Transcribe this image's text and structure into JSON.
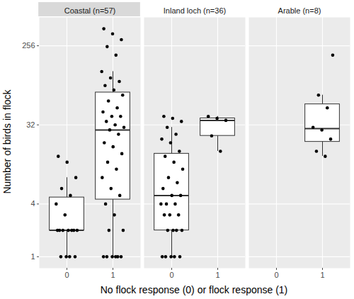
{
  "chart_data": {
    "type": "box",
    "x_label": "No flock response (0) or flock response (1)",
    "y_label": "Number of birds in flock",
    "categories": [
      "0",
      "1"
    ],
    "log": "y",
    "grid": true,
    "ylim": [
      0.74,
      540
    ],
    "yticks": [
      1,
      4,
      32,
      256
    ],
    "marker": "circle",
    "color": "#000000",
    "facets": [
      {
        "name": "Coastal (n=57)",
        "values": [
          [
            1,
            1,
            1,
            1,
            2,
            2,
            2,
            2,
            2,
            2,
            2,
            3,
            4,
            5,
            6,
            8,
            12,
            14
          ],
          [
            1,
            1,
            1,
            1,
            1,
            1,
            2,
            2,
            3,
            4,
            5,
            6,
            8,
            10,
            12,
            15,
            18,
            20,
            25,
            28,
            30,
            32,
            35,
            40,
            40,
            45,
            50,
            60,
            70,
            80,
            90,
            100,
            110,
            130,
            200,
            250,
            300,
            350,
            400
          ]
        ]
      },
      {
        "name": "Inland loch (n=36)",
        "values": [
          [
            1,
            1,
            1,
            1,
            1,
            2,
            2,
            2,
            2,
            3,
            3,
            3,
            4,
            4,
            4,
            5,
            5,
            6,
            7,
            8,
            10,
            12,
            14,
            16,
            20,
            22,
            25,
            30,
            35,
            38,
            40
          ],
          [
            16,
            24,
            36,
            38,
            40
          ]
        ]
      },
      {
        "name": "Arable (n=8)",
        "values": [
          [],
          [
            14,
            16,
            22,
            28,
            30,
            50,
            70,
            200
          ]
        ]
      }
    ]
  }
}
